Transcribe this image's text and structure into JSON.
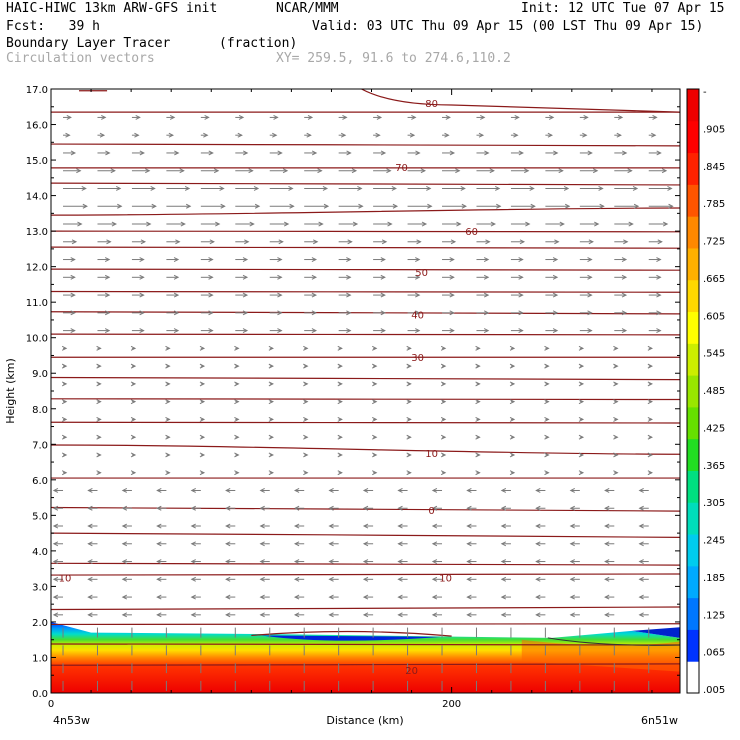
{
  "header": {
    "model": "HAIC-HIWC 13km ARW-GFS init",
    "org": "NCAR/MMM",
    "init": "Init: 12 UTC Tue 07 Apr 15",
    "fcst": "Fcst:   39 h",
    "valid": "Valid: 03 UTC Thu 09 Apr 15 (00 LST Thu 09 Apr 15)",
    "field": "Boundary Layer Tracer",
    "units": "(fraction)",
    "overlay": "Circulation vectors",
    "xy": "XY= 259.5, 91.6 to 274.6,110.2"
  },
  "colors": {
    "contour": "#8b1a1a",
    "vector": "#7a7a7a",
    "scale": [
      "#ffffff",
      "#0033ff",
      "#0077ff",
      "#00aaff",
      "#00ccee",
      "#00ddbb",
      "#00e080",
      "#22dd22",
      "#66e000",
      "#99e600",
      "#ccee00",
      "#ffff00",
      "#ffd800",
      "#ffb000",
      "#ff8800",
      "#ff5500",
      "#ff2200",
      "#ff0000",
      "#ee0000"
    ]
  },
  "chart_data": {
    "type": "heatmap",
    "title": "Boundary Layer Tracer",
    "xlabel": "Distance (km)",
    "ylabel": "Height (km)",
    "xlim": [
      0,
      314
    ],
    "ylim": [
      0.0,
      17.0
    ],
    "x_ticks": [
      0,
      200
    ],
    "x_tick_labels": [
      "0",
      "200"
    ],
    "x_end_labels": [
      "4n53w",
      "6n51w"
    ],
    "y_ticks": [
      0.0,
      1.0,
      2.0,
      3.0,
      4.0,
      5.0,
      6.0,
      7.0,
      8.0,
      9.0,
      10.0,
      11.0,
      12.0,
      13.0,
      14.0,
      15.0,
      16.0,
      17.0
    ],
    "y_tick_labels": [
      "0.0",
      "1.0",
      "2.0",
      "3.0",
      "4.0",
      "5.0",
      "6.0",
      "7.0",
      "8.0",
      "9.0",
      "10.0",
      "11.0",
      "12.0",
      "13.0",
      "14.0",
      "15.0",
      "16.0",
      "17.0"
    ],
    "colorbar_labels": [
      "-",
      ".905",
      ".845",
      ".785",
      ".725",
      ".665",
      ".605",
      ".545",
      ".485",
      ".425",
      ".365",
      ".305",
      ".245",
      ".185",
      ".125",
      ".065",
      ".005"
    ],
    "contour_labels": [
      {
        "text": "80",
        "x": 190,
        "y": 16.6
      },
      {
        "text": "70",
        "x": 175,
        "y": 14.8
      },
      {
        "text": "60",
        "x": 210,
        "y": 13.0
      },
      {
        "text": "50",
        "x": 185,
        "y": 11.85
      },
      {
        "text": "40",
        "x": 183,
        "y": 10.65
      },
      {
        "text": "30",
        "x": 183,
        "y": 9.45
      },
      {
        "text": "10",
        "x": 190,
        "y": 6.75
      },
      {
        "text": "0",
        "x": 190,
        "y": 5.15
      },
      {
        "text": "10",
        "x": 7,
        "y": 3.25
      },
      {
        "text": "10",
        "x": 197,
        "y": 3.25
      },
      {
        "text": "20",
        "x": 180,
        "y": 0.65
      }
    ]
  }
}
